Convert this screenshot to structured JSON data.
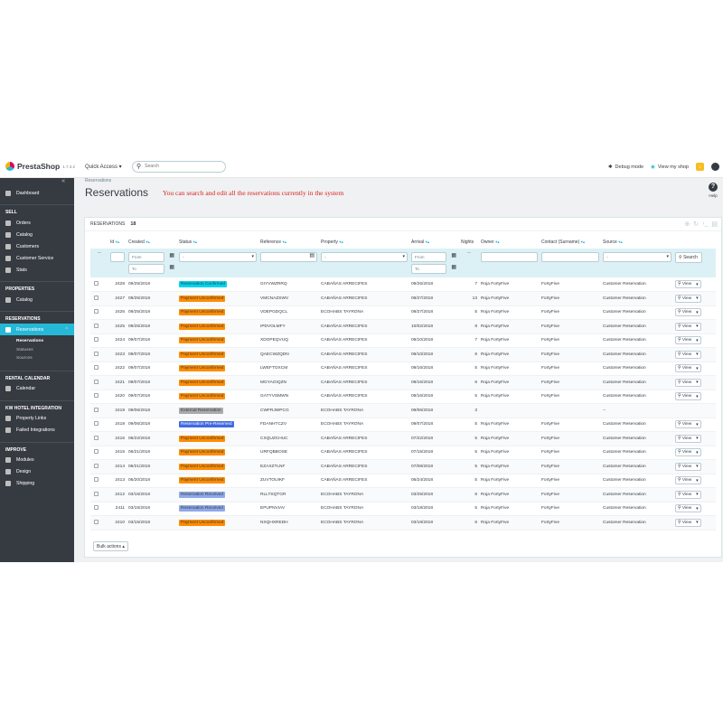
{
  "header": {
    "logo_text": "PrestaShop",
    "version": "1.7.4.2",
    "quick_access": "Quick Access ▾",
    "search_placeholder": "Search",
    "debug_mode": "Debug mode",
    "view_shop": "View my shop",
    "bell_count": "1"
  },
  "sidebar": {
    "collapse": "«",
    "dashboard": "Dashboard",
    "sections": {
      "sell": "SELL",
      "properties": "PROPERTIES",
      "reservations": "RESERVATIONS",
      "rental_calendar": "RENTAL CALENDAR",
      "kw": "KW HOTEL INTEGRATION",
      "improve": "IMPROVE"
    },
    "sell_items": [
      "Orders",
      "Catalog",
      "Customers",
      "Customer Service",
      "Stats"
    ],
    "properties_items": [
      "Catalog"
    ],
    "reservations_item": "Reservations",
    "reservations_sub": [
      "Reservations",
      "Statuses",
      "Sources"
    ],
    "calendar_items": [
      "Calendar"
    ],
    "kw_items": [
      "Property Links",
      "Failed Integrations"
    ],
    "improve_items": [
      "Modules",
      "Design",
      "Shipping"
    ]
  },
  "page": {
    "breadcrumb": "Reservations",
    "title": "Reservations",
    "note": "You can search and edit all the reservations currently in the system",
    "help": "Help"
  },
  "panel": {
    "label": "RESERVATIONS",
    "count": "18",
    "bulk_actions": "Bulk actions ▴"
  },
  "table": {
    "columns": {
      "id": "Id",
      "created": "Created",
      "status": "Status",
      "reference": "Reference",
      "property": "Property",
      "arrival": "Arrival",
      "nights": "Nights",
      "owner": "Owner",
      "contact": "Contact (Surname)",
      "source": "Source"
    },
    "sort_arrows": "▾▴",
    "filters": {
      "blank": "--",
      "from": "From",
      "to": "To",
      "select": "-",
      "search": "Search"
    },
    "view_label": "View",
    "rows": [
      {
        "id": "2428",
        "created": "09/25/2018",
        "status": "Reservation Confirmed",
        "status_color": "#00d4ec",
        "status_text": "#363a41",
        "reference": "GIYVWZRRQ",
        "property": "CABAÑAS ARRECIFES",
        "arrival": "09/26/2018",
        "nights": "7",
        "owner": "Roja FortyFive",
        "contact": "FortyFive",
        "source": "Customer Reservation",
        "view": true
      },
      {
        "id": "2427",
        "created": "09/25/2018",
        "status": "Payment Unconfirmed",
        "status_color": "#ff8c00",
        "status_text": "#363a41",
        "reference": "VMCNAZSWV",
        "property": "CABAÑAS ARRECIFES",
        "arrival": "09/27/2018",
        "nights": "13",
        "owner": "Roja FortyFive",
        "contact": "FortyFive",
        "source": "Customer Reservation",
        "view": true
      },
      {
        "id": "2426",
        "created": "09/25/2018",
        "status": "Payment Unconfirmed",
        "status_color": "#ff8c00",
        "status_text": "#363a41",
        "reference": "VDEPGDQCL",
        "property": "ECOHABS TAYRONA",
        "arrival": "09/27/2018",
        "nights": "5",
        "owner": "Roja FortyFive",
        "contact": "FortyFive",
        "source": "Customer Reservation",
        "view": true
      },
      {
        "id": "2425",
        "created": "09/25/2018",
        "status": "Payment Unconfirmed",
        "status_color": "#ff8c00",
        "status_text": "#363a41",
        "reference": "IPDVOLMFY",
        "property": "CABAÑAS ARRECIFES",
        "arrival": "10/02/2018",
        "nights": "8",
        "owner": "Roja FortyFive",
        "contact": "FortyFive",
        "source": "Customer Reservation",
        "view": true
      },
      {
        "id": "2424",
        "created": "09/07/2018",
        "status": "Payment Unconfirmed",
        "status_color": "#ff8c00",
        "status_text": "#363a41",
        "reference": "XDOPEQVUQ",
        "property": "CABAÑAS ARRECIFES",
        "arrival": "09/10/2018",
        "nights": "7",
        "owner": "Roja FortyFive",
        "contact": "FortyFive",
        "source": "Customer Reservation",
        "view": true
      },
      {
        "id": "2423",
        "created": "09/07/2018",
        "status": "Payment Unconfirmed",
        "status_color": "#ff8c00",
        "status_text": "#363a41",
        "reference": "QAECWZQDN",
        "property": "CABAÑAS ARRECIFES",
        "arrival": "09/10/2018",
        "nights": "6",
        "owner": "Roja FortyFive",
        "contact": "FortyFive",
        "source": "Customer Reservation",
        "view": true
      },
      {
        "id": "2422",
        "created": "09/07/2018",
        "status": "Payment Unconfirmed",
        "status_color": "#ff8c00",
        "status_text": "#363a41",
        "reference": "LWEFTOXCM",
        "property": "CABAÑAS ARRECIFES",
        "arrival": "09/16/2018",
        "nights": "5",
        "owner": "Roja FortyFive",
        "contact": "FortyFive",
        "source": "Customer Reservation",
        "view": true
      },
      {
        "id": "2421",
        "created": "09/07/2018",
        "status": "Payment Unconfirmed",
        "status_color": "#ff8c00",
        "status_text": "#363a41",
        "reference": "MGYAOIQZN",
        "property": "CABAÑAS ARRECIFES",
        "arrival": "09/16/2018",
        "nights": "6",
        "owner": "Roja FortyFive",
        "contact": "FortyFive",
        "source": "Customer Reservation",
        "view": true
      },
      {
        "id": "2420",
        "created": "09/07/2018",
        "status": "Payment Unconfirmed",
        "status_color": "#ff8c00",
        "status_text": "#363a41",
        "reference": "GATYVSMWN",
        "property": "CABAÑAS ARRECIFES",
        "arrival": "09/16/2018",
        "nights": "5",
        "owner": "Roja FortyFive",
        "contact": "FortyFive",
        "source": "Customer Reservation",
        "view": true
      },
      {
        "id": "2419",
        "created": "09/06/2018",
        "status": "External Reservation",
        "status_color": "#aaaaaa",
        "status_text": "#363a41",
        "reference": "CWFRJWPCG",
        "property": "ECOHABS TAYRONA",
        "arrival": "09/06/2018",
        "nights": "3",
        "owner": "",
        "contact": "",
        "source": "--",
        "view": false
      },
      {
        "id": "2418",
        "created": "09/06/2018",
        "status": "Reservation Pre-Reserved",
        "status_color": "#4169e1",
        "status_text": "#ffffff",
        "reference": "FDANHTCZV",
        "property": "ECOHABS TAYRONA",
        "arrival": "09/07/2018",
        "nights": "5",
        "owner": "Roja FortyFive",
        "contact": "FortyFive",
        "source": "Customer Reservation",
        "view": true
      },
      {
        "id": "2416",
        "created": "06/22/2018",
        "status": "Payment Unconfirmed",
        "status_color": "#ff8c00",
        "status_text": "#363a41",
        "reference": "CXQUZCHUC",
        "property": "CABAÑAS ARRECIFES",
        "arrival": "07/22/2018",
        "nights": "5",
        "owner": "Roja FortyFive",
        "contact": "FortyFive",
        "source": "Customer Reservation",
        "view": true
      },
      {
        "id": "2415",
        "created": "06/21/2018",
        "status": "Payment Unconfirmed",
        "status_color": "#ff8c00",
        "status_text": "#363a41",
        "reference": "URFQBBOSE",
        "property": "CABAÑAS ARRECIFES",
        "arrival": "07/15/2018",
        "nights": "5",
        "owner": "Roja FortyFive",
        "contact": "FortyFive",
        "source": "Customer Reservation",
        "view": true
      },
      {
        "id": "2414",
        "created": "06/21/2018",
        "status": "Payment Unconfirmed",
        "status_color": "#ff8c00",
        "status_text": "#363a41",
        "reference": "EZAXZTLNF",
        "property": "CABAÑAS ARRECIFES",
        "arrival": "07/08/2018",
        "nights": "5",
        "owner": "Roja FortyFive",
        "contact": "FortyFive",
        "source": "Customer Reservation",
        "view": true
      },
      {
        "id": "2413",
        "created": "06/20/2018",
        "status": "Payment Unconfirmed",
        "status_color": "#ff8c00",
        "status_text": "#363a41",
        "reference": "ZUVTOUIKF",
        "property": "CABAÑAS ARRECIFES",
        "arrival": "06/24/2018",
        "nights": "5",
        "owner": "Roja FortyFive",
        "contact": "FortyFive",
        "source": "Customer Reservation",
        "view": true
      },
      {
        "id": "2412",
        "created": "03/15/2018",
        "status": "Reservation Received",
        "status_color": "#8fa8e8",
        "status_text": "#363a41",
        "reference": "RLLTSQTGR",
        "property": "ECOHABS TAYRONA",
        "arrival": "03/25/2018",
        "nights": "6",
        "owner": "Roja FortyFive",
        "contact": "FortyFive",
        "source": "Customer Reservation",
        "view": true
      },
      {
        "id": "2411",
        "created": "03/15/2018",
        "status": "Reservation Received",
        "status_color": "#8fa8e8",
        "status_text": "#363a41",
        "reference": "EPUPNVIAV",
        "property": "ECOHABS TAYRONA",
        "arrival": "03/18/2018",
        "nights": "5",
        "owner": "Roja FortyFive",
        "contact": "FortyFive",
        "source": "Customer Reservation",
        "view": true
      },
      {
        "id": "2410",
        "created": "03/15/2018",
        "status": "Payment Unconfirmed",
        "status_color": "#ff8c00",
        "status_text": "#363a41",
        "reference": "NXQHXREDH",
        "property": "ECOHABS TAYRONA",
        "arrival": "03/18/2018",
        "nights": "6",
        "owner": "Roja FortyFive",
        "contact": "FortyFive",
        "source": "Customer Reservation",
        "view": true
      }
    ]
  }
}
